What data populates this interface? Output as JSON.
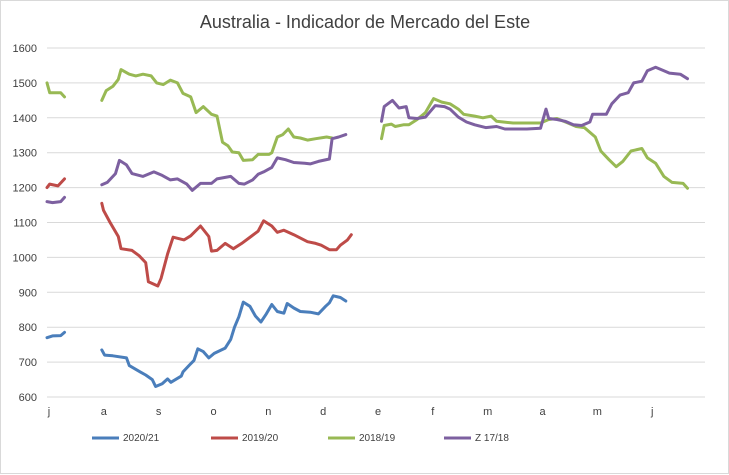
{
  "chart_data": {
    "type": "line",
    "title": "Australia - Indicador de Mercado del Este",
    "xlabel": "",
    "ylabel": "",
    "ylim": [
      600,
      1600
    ],
    "y_ticks": [
      "600",
      "700",
      "800",
      "900",
      "1000",
      "1100",
      "1200",
      "1300",
      "1400",
      "1500",
      "1600"
    ],
    "x_month_labels": [
      "j",
      "a",
      "s",
      "o",
      "n",
      "d",
      "e",
      "f",
      "m",
      "a",
      "m",
      "j"
    ],
    "x_range_months": [
      0,
      12
    ],
    "grid": "horizontal",
    "legend_position": "bottom",
    "series": [
      {
        "name": "2020/21",
        "color": "#4a7ebb",
        "segments": [
          [
            [
              0.0,
              770
            ],
            [
              0.1,
              775
            ],
            [
              0.25,
              776
            ],
            [
              0.32,
              785
            ]
          ],
          [
            [
              1.0,
              735
            ],
            [
              1.05,
              720
            ],
            [
              1.2,
              718
            ],
            [
              1.45,
              712
            ],
            [
              1.5,
              690
            ],
            [
              1.7,
              672
            ],
            [
              1.8,
              663
            ],
            [
              1.92,
              650
            ],
            [
              1.98,
              630
            ],
            [
              2.1,
              638
            ],
            [
              2.2,
              652
            ],
            [
              2.26,
              642
            ],
            [
              2.45,
              660
            ],
            [
              2.48,
              672
            ],
            [
              2.6,
              692
            ],
            [
              2.68,
              705
            ],
            [
              2.75,
              738
            ],
            [
              2.85,
              730
            ],
            [
              2.95,
              712
            ],
            [
              3.05,
              725
            ],
            [
              3.25,
              740
            ],
            [
              3.35,
              765
            ],
            [
              3.42,
              800
            ],
            [
              3.5,
              830
            ],
            [
              3.58,
              872
            ],
            [
              3.7,
              860
            ],
            [
              3.8,
              832
            ],
            [
              3.9,
              815
            ],
            [
              4.0,
              838
            ],
            [
              4.1,
              865
            ],
            [
              4.2,
              845
            ],
            [
              4.32,
              840
            ],
            [
              4.38,
              868
            ],
            [
              4.5,
              855
            ],
            [
              4.62,
              845
            ],
            [
              4.8,
              843
            ],
            [
              4.95,
              838
            ],
            [
              5.08,
              860
            ],
            [
              5.15,
              870
            ],
            [
              5.22,
              890
            ],
            [
              5.35,
              885
            ],
            [
              5.45,
              875
            ]
          ]
        ]
      },
      {
        "name": "2019/20",
        "color": "#be4b48",
        "segments": [
          [
            [
              0.0,
              1200
            ],
            [
              0.05,
              1210
            ],
            [
              0.2,
              1205
            ],
            [
              0.32,
              1225
            ]
          ],
          [
            [
              1.0,
              1155
            ],
            [
              1.03,
              1135
            ],
            [
              1.15,
              1100
            ],
            [
              1.3,
              1060
            ],
            [
              1.35,
              1025
            ],
            [
              1.55,
              1020
            ],
            [
              1.68,
              1005
            ],
            [
              1.8,
              985
            ],
            [
              1.85,
              930
            ],
            [
              2.02,
              918
            ],
            [
              2.08,
              940
            ],
            [
              2.2,
              1010
            ],
            [
              2.3,
              1058
            ],
            [
              2.5,
              1050
            ],
            [
              2.62,
              1062
            ],
            [
              2.8,
              1090
            ],
            [
              2.95,
              1060
            ],
            [
              3.0,
              1018
            ],
            [
              3.1,
              1020
            ],
            [
              3.25,
              1040
            ],
            [
              3.4,
              1025
            ],
            [
              3.55,
              1040
            ],
            [
              3.72,
              1060
            ],
            [
              3.85,
              1075
            ],
            [
              3.95,
              1105
            ],
            [
              4.1,
              1090
            ],
            [
              4.2,
              1072
            ],
            [
              4.32,
              1078
            ],
            [
              4.5,
              1065
            ],
            [
              4.75,
              1045
            ],
            [
              4.9,
              1040
            ],
            [
              5.0,
              1035
            ],
            [
              5.15,
              1022
            ],
            [
              5.28,
              1022
            ],
            [
              5.35,
              1035
            ],
            [
              5.48,
              1050
            ],
            [
              5.55,
              1065
            ]
          ]
        ]
      },
      {
        "name": "2018/19",
        "color": "#98b954",
        "segments": [
          [
            [
              0.0,
              1500
            ],
            [
              0.05,
              1472
            ],
            [
              0.25,
              1472
            ],
            [
              0.32,
              1460
            ]
          ],
          [
            [
              1.0,
              1450
            ],
            [
              1.08,
              1478
            ],
            [
              1.2,
              1490
            ],
            [
              1.3,
              1510
            ],
            [
              1.35,
              1538
            ],
            [
              1.5,
              1525
            ],
            [
              1.62,
              1520
            ],
            [
              1.75,
              1525
            ],
            [
              1.9,
              1520
            ],
            [
              2.0,
              1500
            ],
            [
              2.12,
              1495
            ],
            [
              2.25,
              1508
            ],
            [
              2.38,
              1500
            ],
            [
              2.48,
              1470
            ],
            [
              2.62,
              1460
            ],
            [
              2.72,
              1415
            ],
            [
              2.85,
              1432
            ],
            [
              3.0,
              1410
            ],
            [
              3.1,
              1405
            ],
            [
              3.2,
              1330
            ],
            [
              3.3,
              1320
            ],
            [
              3.38,
              1302
            ],
            [
              3.5,
              1300
            ],
            [
              3.58,
              1278
            ],
            [
              3.75,
              1280
            ],
            [
              3.85,
              1295
            ],
            [
              4.05,
              1295
            ],
            [
              4.1,
              1300
            ],
            [
              4.2,
              1345
            ],
            [
              4.3,
              1352
            ],
            [
              4.4,
              1368
            ],
            [
              4.5,
              1345
            ],
            [
              4.62,
              1342
            ],
            [
              4.75,
              1336
            ],
            [
              4.9,
              1340
            ],
            [
              5.1,
              1345
            ],
            [
              5.2,
              1342
            ]
          ],
          [
            [
              6.1,
              1340
            ],
            [
              6.15,
              1378
            ],
            [
              6.28,
              1382
            ],
            [
              6.35,
              1375
            ],
            [
              6.5,
              1380
            ],
            [
              6.6,
              1380
            ],
            [
              6.75,
              1395
            ],
            [
              6.9,
              1415
            ],
            [
              7.05,
              1455
            ],
            [
              7.2,
              1445
            ],
            [
              7.35,
              1440
            ],
            [
              7.5,
              1425
            ],
            [
              7.6,
              1410
            ],
            [
              7.8,
              1405
            ],
            [
              7.95,
              1400
            ],
            [
              8.1,
              1405
            ],
            [
              8.2,
              1390
            ],
            [
              8.5,
              1385
            ],
            [
              8.75,
              1385
            ],
            [
              9.0,
              1385
            ],
            [
              9.15,
              1395
            ],
            [
              9.3,
              1398
            ],
            [
              9.5,
              1385
            ],
            [
              9.65,
              1375
            ],
            [
              9.8,
              1372
            ],
            [
              10.0,
              1345
            ],
            [
              10.1,
              1305
            ],
            [
              10.25,
              1280
            ],
            [
              10.38,
              1260
            ],
            [
              10.5,
              1275
            ],
            [
              10.65,
              1305
            ],
            [
              10.85,
              1312
            ],
            [
              10.95,
              1285
            ],
            [
              11.1,
              1270
            ],
            [
              11.25,
              1232
            ],
            [
              11.4,
              1215
            ],
            [
              11.6,
              1212
            ],
            [
              11.68,
              1198
            ]
          ]
        ]
      },
      {
        "name": "Z 17/18",
        "color": "#7d60a0",
        "segments": [
          [
            [
              0.0,
              1160
            ],
            [
              0.1,
              1157
            ],
            [
              0.25,
              1160
            ],
            [
              0.32,
              1172
            ]
          ],
          [
            [
              1.0,
              1208
            ],
            [
              1.1,
              1215
            ],
            [
              1.25,
              1240
            ],
            [
              1.32,
              1278
            ],
            [
              1.45,
              1265
            ],
            [
              1.55,
              1240
            ],
            [
              1.75,
              1232
            ],
            [
              1.95,
              1245
            ],
            [
              2.1,
              1235
            ],
            [
              2.25,
              1222
            ],
            [
              2.38,
              1225
            ],
            [
              2.55,
              1210
            ],
            [
              2.65,
              1192
            ],
            [
              2.8,
              1212
            ],
            [
              3.0,
              1212
            ],
            [
              3.1,
              1225
            ],
            [
              3.35,
              1232
            ],
            [
              3.5,
              1212
            ],
            [
              3.6,
              1210
            ],
            [
              3.75,
              1222
            ],
            [
              3.85,
              1238
            ],
            [
              3.95,
              1245
            ],
            [
              4.1,
              1258
            ],
            [
              4.2,
              1285
            ],
            [
              4.35,
              1280
            ],
            [
              4.5,
              1272
            ],
            [
              4.7,
              1270
            ],
            [
              4.8,
              1268
            ],
            [
              4.95,
              1275
            ],
            [
              5.15,
              1282
            ],
            [
              5.2,
              1340
            ],
            [
              5.32,
              1345
            ],
            [
              5.45,
              1352
            ]
          ],
          [
            [
              6.1,
              1390
            ],
            [
              6.15,
              1432
            ],
            [
              6.3,
              1450
            ],
            [
              6.42,
              1428
            ],
            [
              6.55,
              1432
            ],
            [
              6.6,
              1400
            ],
            [
              6.75,
              1398
            ],
            [
              6.9,
              1402
            ],
            [
              7.0,
              1420
            ],
            [
              7.08,
              1435
            ],
            [
              7.25,
              1432
            ],
            [
              7.35,
              1425
            ],
            [
              7.5,
              1402
            ],
            [
              7.65,
              1388
            ],
            [
              7.8,
              1380
            ],
            [
              8.0,
              1372
            ],
            [
              8.2,
              1375
            ],
            [
              8.35,
              1368
            ],
            [
              8.55,
              1368
            ],
            [
              8.75,
              1368
            ],
            [
              9.0,
              1370
            ],
            [
              9.1,
              1425
            ],
            [
              9.15,
              1398
            ],
            [
              9.3,
              1395
            ],
            [
              9.45,
              1390
            ],
            [
              9.6,
              1380
            ],
            [
              9.75,
              1378
            ],
            [
              9.9,
              1388
            ],
            [
              9.95,
              1410
            ],
            [
              10.2,
              1410
            ],
            [
              10.3,
              1440
            ],
            [
              10.45,
              1465
            ],
            [
              10.6,
              1472
            ],
            [
              10.7,
              1500
            ],
            [
              10.85,
              1505
            ],
            [
              10.95,
              1535
            ],
            [
              11.1,
              1545
            ],
            [
              11.25,
              1535
            ],
            [
              11.35,
              1528
            ],
            [
              11.55,
              1525
            ],
            [
              11.68,
              1512
            ]
          ]
        ]
      }
    ]
  }
}
